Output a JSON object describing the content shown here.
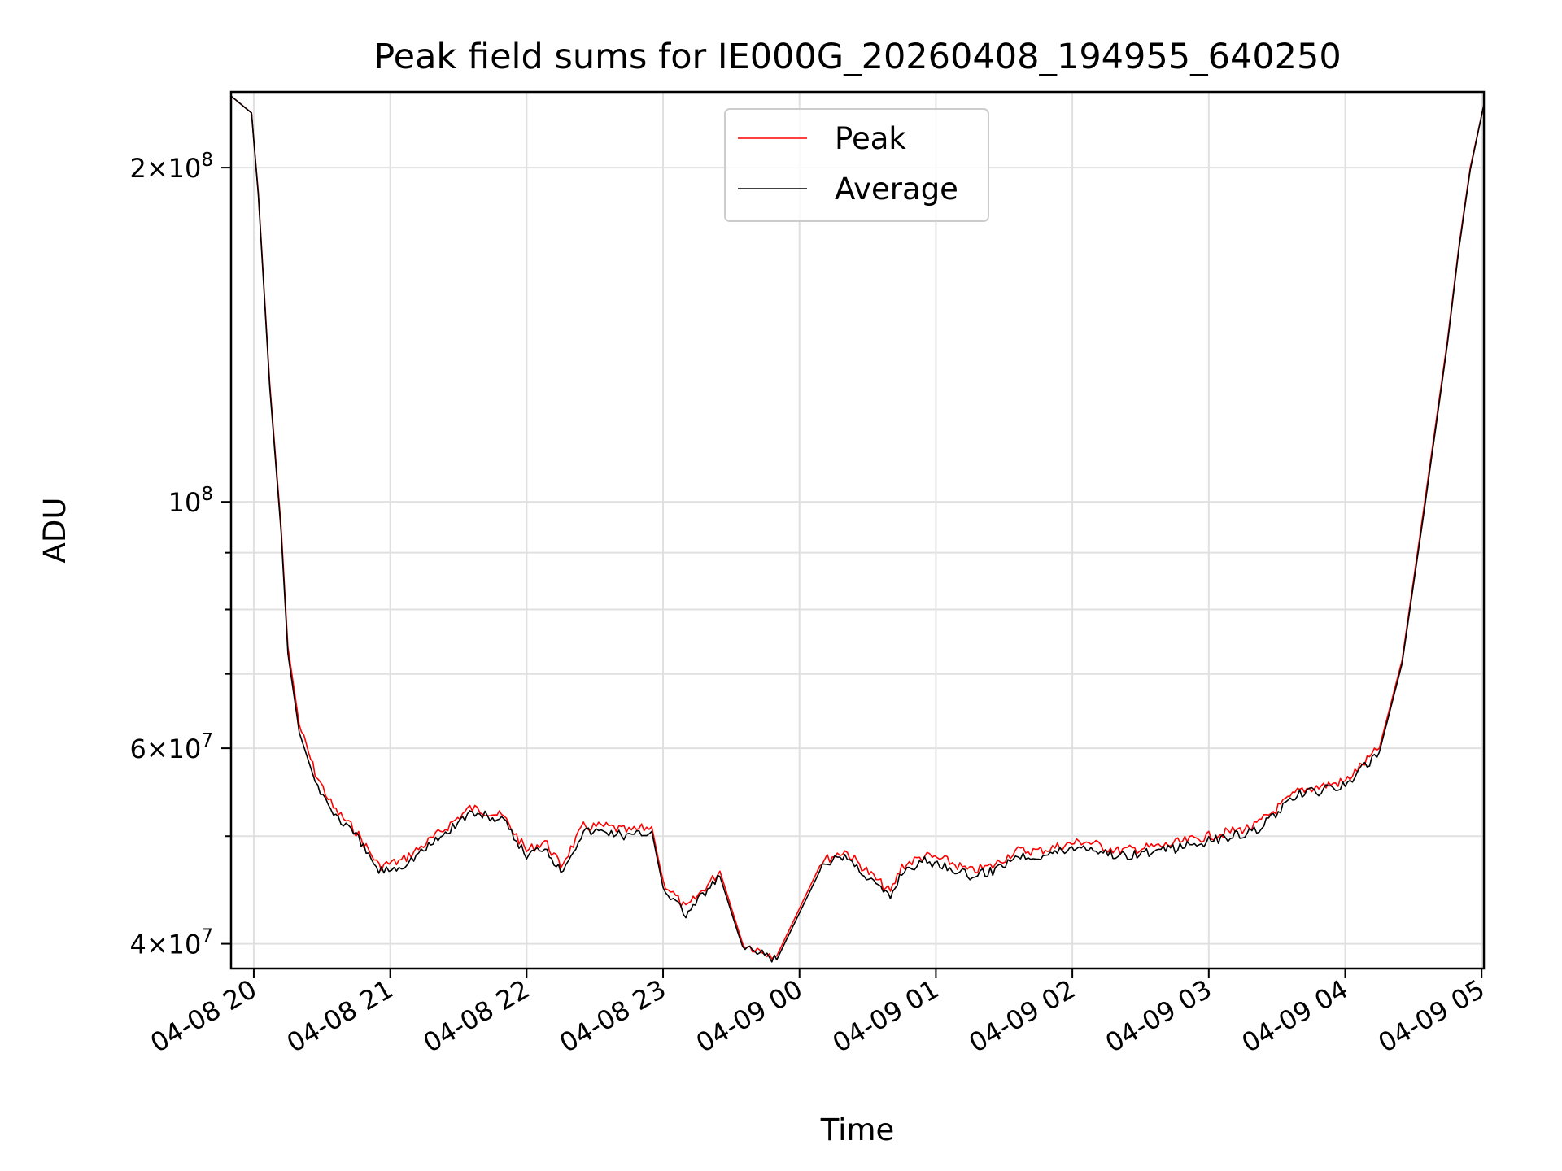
{
  "chart_data": {
    "type": "line",
    "title": "Peak field sums for IE000G_20260408_194955_640250",
    "xlabel": "Time",
    "ylabel": "ADU",
    "yscale": "log",
    "ylim": [
      38000000,
      234000000
    ],
    "xlim": [
      "2026-04-08 19:50",
      "2026-04-09 05:01"
    ],
    "x_ticks": [
      "04-08 20",
      "04-08 21",
      "04-08 22",
      "04-08 23",
      "04-09 00",
      "04-09 01",
      "04-09 02",
      "04-09 03",
      "04-09 04",
      "04-09 05"
    ],
    "y_ticks": [
      {
        "value": 40000000,
        "base": "4",
        "exp": "7"
      },
      {
        "value": 60000000,
        "base": "6",
        "exp": "7"
      },
      {
        "value": 100000000,
        "base": "",
        "exp": "8"
      },
      {
        "value": 200000000,
        "base": "2",
        "exp": "8"
      }
    ],
    "grid": true,
    "legend_position": "upper center",
    "series": [
      {
        "name": "Peak",
        "color": "#ff0000",
        "x": [
          "2026-04-08 19:50",
          "2026-04-08 19:59",
          "2026-04-08 20:02",
          "2026-04-08 20:07",
          "2026-04-08 20:12",
          "2026-04-08 20:15",
          "2026-04-08 20:20",
          "2026-04-08 20:27",
          "2026-04-08 20:35",
          "2026-04-08 20:45",
          "2026-04-08 20:55",
          "2026-04-08 21:05",
          "2026-04-08 21:20",
          "2026-04-08 21:35",
          "2026-04-08 21:45",
          "2026-04-08 21:50",
          "2026-04-08 22:00",
          "2026-04-08 22:08",
          "2026-04-08 22:15",
          "2026-04-08 22:25",
          "2026-04-08 22:35",
          "2026-04-08 22:45",
          "2026-04-08 22:55",
          "2026-04-08 23:00",
          "2026-04-08 23:10",
          "2026-04-08 23:25",
          "2026-04-08 23:35",
          "2026-04-08 23:50",
          "2026-04-09 00:10",
          "2026-04-09 00:20",
          "2026-04-09 00:40",
          "2026-04-09 00:45",
          "2026-04-09 00:55",
          "2026-04-09 01:05",
          "2026-04-09 01:15",
          "2026-04-09 01:25",
          "2026-04-09 01:35",
          "2026-04-09 01:45",
          "2026-04-09 02:05",
          "2026-04-09 02:20",
          "2026-04-09 02:40",
          "2026-04-09 03:00",
          "2026-04-09 03:20",
          "2026-04-09 03:40",
          "2026-04-09 04:00",
          "2026-04-09 04:15",
          "2026-04-09 04:25",
          "2026-04-09 04:35",
          "2026-04-09 04:45",
          "2026-04-09 04:50",
          "2026-04-09 04:55",
          "2026-04-09 05:01"
        ],
        "values": [
          232000000,
          224000000,
          190000000,
          128000000,
          95000000,
          74000000,
          63000000,
          57000000,
          53000000,
          50500000,
          47000000,
          47500000,
          50000000,
          53000000,
          52500000,
          52000000,
          48500000,
          49500000,
          47000000,
          51000000,
          51000000,
          50500000,
          51000000,
          45500000,
          43000000,
          46500000,
          40000000,
          39000000,
          47500000,
          48500000,
          44500000,
          47000000,
          48000000,
          47500000,
          46500000,
          47000000,
          48500000,
          48500000,
          49500000,
          48500000,
          49000000,
          50000000,
          51000000,
          55000000,
          56000000,
          60000000,
          72000000,
          100000000,
          140000000,
          170000000,
          200000000,
          228000000
        ]
      },
      {
        "name": "Average",
        "color": "#000000",
        "x": [
          "2026-04-08 19:50",
          "2026-04-08 19:59",
          "2026-04-08 20:02",
          "2026-04-08 20:07",
          "2026-04-08 20:12",
          "2026-04-08 20:15",
          "2026-04-08 20:20",
          "2026-04-08 20:27",
          "2026-04-08 20:35",
          "2026-04-08 20:45",
          "2026-04-08 20:55",
          "2026-04-08 21:05",
          "2026-04-08 21:20",
          "2026-04-08 21:35",
          "2026-04-08 21:45",
          "2026-04-08 21:50",
          "2026-04-08 22:00",
          "2026-04-08 22:08",
          "2026-04-08 22:15",
          "2026-04-08 22:25",
          "2026-04-08 22:35",
          "2026-04-08 22:45",
          "2026-04-08 22:55",
          "2026-04-08 23:00",
          "2026-04-08 23:10",
          "2026-04-08 23:25",
          "2026-04-08 23:35",
          "2026-04-08 23:50",
          "2026-04-09 00:10",
          "2026-04-09 00:20",
          "2026-04-09 00:40",
          "2026-04-09 00:45",
          "2026-04-09 00:55",
          "2026-04-09 01:05",
          "2026-04-09 01:15",
          "2026-04-09 01:25",
          "2026-04-09 01:35",
          "2026-04-09 01:45",
          "2026-04-09 02:05",
          "2026-04-09 02:20",
          "2026-04-09 02:40",
          "2026-04-09 03:00",
          "2026-04-09 03:20",
          "2026-04-09 03:40",
          "2026-04-09 04:00",
          "2026-04-09 04:15",
          "2026-04-09 04:25",
          "2026-04-09 04:35",
          "2026-04-09 04:45",
          "2026-04-09 04:50",
          "2026-04-09 04:55",
          "2026-04-09 05:01"
        ],
        "values": [
          232000000,
          224000000,
          189000000,
          127000000,
          94000000,
          73000000,
          62000000,
          56000000,
          52500000,
          50000000,
          46500000,
          47000000,
          49500000,
          52500000,
          52000000,
          51500000,
          48000000,
          49000000,
          46500000,
          50500000,
          50500000,
          50000000,
          50500000,
          45000000,
          42500000,
          46000000,
          39700000,
          38700000,
          47000000,
          48000000,
          44000000,
          46500000,
          47500000,
          47000000,
          46000000,
          46500000,
          48000000,
          48000000,
          49000000,
          48000000,
          48500000,
          49500000,
          50500000,
          54500000,
          55500000,
          59500000,
          71500000,
          99000000,
          139000000,
          169000000,
          199000000,
          228000000
        ]
      }
    ]
  }
}
